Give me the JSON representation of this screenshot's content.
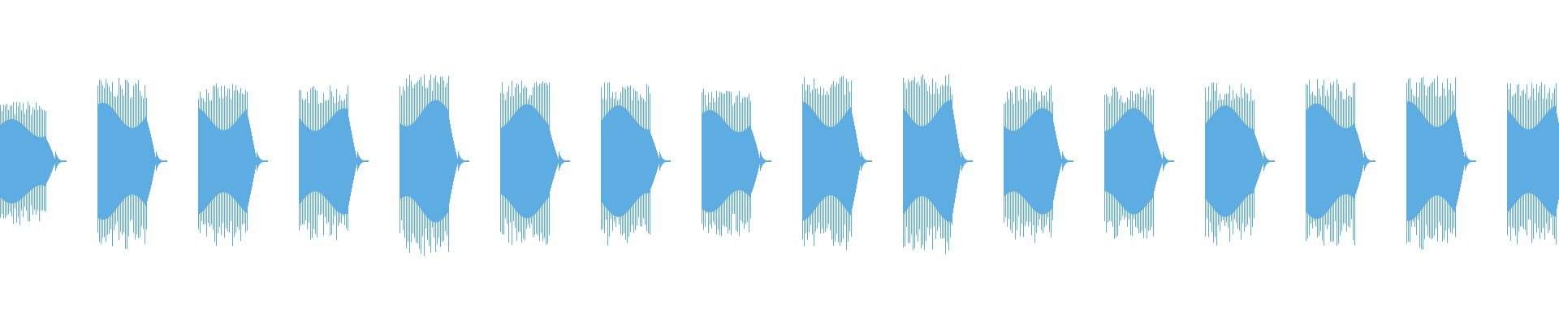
{
  "waveform": {
    "color": "#5DADE2",
    "background": "#FFFFFF",
    "burst_count": 16,
    "burst_peak_amplitudes": [
      0.62,
      0.86,
      0.8,
      0.78,
      0.9,
      0.84,
      0.82,
      0.75,
      0.88,
      0.9,
      0.78,
      0.78,
      0.82,
      0.85,
      0.88,
      0.82
    ]
  }
}
